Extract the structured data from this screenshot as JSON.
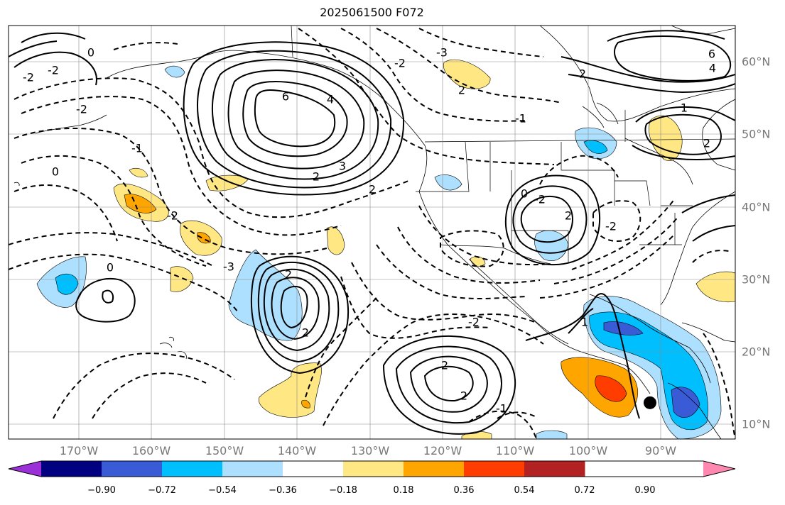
{
  "title": "2025061500 F072",
  "map": {
    "lon_range": [
      -180,
      -82
    ],
    "lat_range": [
      8,
      65
    ],
    "lon_ticks": [
      {
        "value": -170,
        "label": "170°W"
      },
      {
        "value": -160,
        "label": "160°W"
      },
      {
        "value": -150,
        "label": "150°W"
      },
      {
        "value": -140,
        "label": "140°W"
      },
      {
        "value": -130,
        "label": "130°W"
      },
      {
        "value": -120,
        "label": "120°W"
      },
      {
        "value": -110,
        "label": "110°W"
      },
      {
        "value": -100,
        "label": "100°W"
      },
      {
        "value": -90,
        "label": "90°W"
      }
    ],
    "lat_ticks": [
      {
        "value": 60,
        "label": "60°N"
      },
      {
        "value": 50,
        "label": "50°N"
      },
      {
        "value": 40,
        "label": "40°N"
      },
      {
        "value": 30,
        "label": "30°N"
      },
      {
        "value": 20,
        "label": "20°N"
      },
      {
        "value": 10,
        "label": "10°N"
      }
    ],
    "gridlines": true,
    "contour_labels": [
      "6",
      "4",
      "3",
      "2",
      "2",
      "0",
      "-2",
      "-1",
      "0",
      "-2",
      "-3",
      "2",
      "2",
      "-2",
      "2",
      "2",
      "-1",
      "0",
      "-2",
      "2",
      "1",
      "-2",
      "6",
      "4",
      "2",
      "-1",
      "2",
      "-3",
      "-2",
      "1",
      "0",
      "-2",
      "-2",
      "2"
    ],
    "marker": {
      "lon": -93.5,
      "lat": 13.0,
      "color": "#000000"
    }
  },
  "colorbar": {
    "ticks": [
      "−0.90",
      "−0.72",
      "−0.54",
      "−0.36",
      "−0.18",
      "0.18",
      "0.36",
      "0.54",
      "0.72",
      "0.90"
    ],
    "colors": [
      "#9b30d9",
      "#000080",
      "#3a5bd6",
      "#00bfff",
      "#ade0ff",
      "#ffffff",
      "#ffe784",
      "#ffa500",
      "#ff3d00",
      "#b22222",
      "#ff88b0"
    ]
  }
}
